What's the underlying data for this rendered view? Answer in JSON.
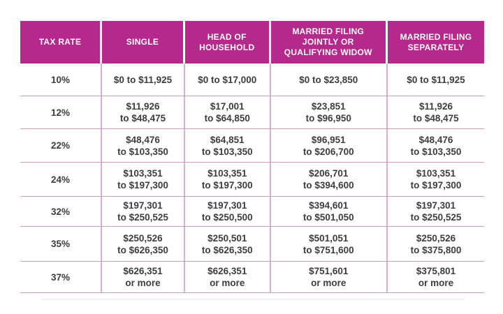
{
  "table": {
    "accent_color": "#b5288c",
    "header_text_color": "#ffffff",
    "body_text_color": "#3d3c3e",
    "vline_color": "#dbaed0",
    "hline_color": "#cb9ec0",
    "columns": [
      "TAX RATE",
      "SINGLE",
      "HEAD OF\nHOUSEHOLD",
      "MARRIED FILING\nJOINTLY OR\nQUALIFYING WIDOW",
      "MARRIED FILING\nSEPARATELY"
    ],
    "rows": [
      {
        "rate": "10%",
        "single": "$0 to $11,925",
        "head_of_household": "$0 to $17,000",
        "married_jointly": "$0 to $23,850",
        "married_separately": "$0 to $11,925"
      },
      {
        "rate": "12%",
        "single": "$11,926\nto $48,475",
        "head_of_household": "$17,001\nto $64,850",
        "married_jointly": "$23,851\nto $96,950",
        "married_separately": "$11,926\nto $48,475"
      },
      {
        "rate": "22%",
        "single": "$48,476\nto $103,350",
        "head_of_household": "$64,851\nto $103,350",
        "married_jointly": "$96,951\nto $206,700",
        "married_separately": "$48,476\nto $103,350"
      },
      {
        "rate": "24%",
        "single": "$103,351\nto $197,300",
        "head_of_household": "$103,351\nto $197,300",
        "married_jointly": "$206,701\nto $394,600",
        "married_separately": "$103,351\nto $197,300"
      },
      {
        "rate": "32%",
        "single": "$197,301\nto $250,525",
        "head_of_household": "$197,301\nto $250,500",
        "married_jointly": "$394,601\nto $501,050",
        "married_separately": "$197,301\nto $250,525"
      },
      {
        "rate": "35%",
        "single": "$250,526\nto $626,350",
        "head_of_household": "$250,501\nto $626,350",
        "married_jointly": "$501,051\nto $751,600",
        "married_separately": "$250,526\nto $375,800"
      },
      {
        "rate": "37%",
        "single": "$626,351\nor more",
        "head_of_household": "$626,351\nor more",
        "married_jointly": "$751,601\nor more",
        "married_separately": "$375,801\nor more"
      }
    ]
  }
}
